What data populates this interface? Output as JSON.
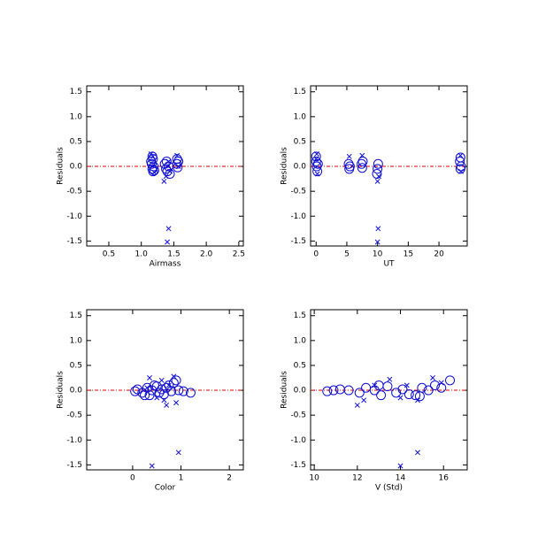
{
  "chart_data": [
    {
      "type": "scatter",
      "x_label": "Airmass",
      "y_label": "Residuals",
      "xlim": [
        0.16,
        2.57
      ],
      "ylim": [
        -1.6,
        1.62
      ],
      "xticks": [
        0.5,
        {
          "value": 1,
          "label": "1.0"
        },
        1.5,
        {
          "value": 2,
          "label": "2.0"
        },
        2.5
      ],
      "yticks": [
        1.5,
        {
          "value": 1,
          "label": "1.0"
        },
        0.5,
        {
          "value": 0,
          "label": "0.0"
        },
        -0.5,
        {
          "value": -1,
          "label": "-1.0"
        },
        -1.5
      ],
      "hline": 0,
      "hline_color": "#dd0000",
      "series": [
        {
          "marker": "o",
          "color": "#1010d0",
          "x": [
            1.15,
            1.16,
            1.17,
            1.18,
            1.19,
            1.2,
            1.17,
            1.18,
            1.36,
            1.38,
            1.4,
            1.42,
            1.44,
            1.39,
            1.55,
            1.56,
            1.57,
            1.55
          ],
          "values": [
            0.1,
            0.05,
            -0.05,
            0.15,
            0.0,
            -0.08,
            0.2,
            -0.1,
            0.05,
            -0.05,
            -0.1,
            0.0,
            -0.15,
            0.1,
            0.05,
            -0.02,
            0.1,
            0.15
          ]
        },
        {
          "marker": "x",
          "color": "#1010d0",
          "x": [
            1.15,
            1.2,
            1.18,
            1.35,
            1.38,
            1.42,
            1.44,
            1.55,
            1.57,
            1.42,
            1.4
          ],
          "values": [
            0.25,
            -0.12,
            0.2,
            -0.3,
            -0.2,
            0.1,
            -0.1,
            0.22,
            0.0,
            -1.25,
            -1.52
          ]
        }
      ]
    },
    {
      "type": "scatter",
      "x_label": "UT",
      "y_label": "Residuals",
      "xlim": [
        -0.9,
        24.6
      ],
      "ylim": [
        -1.6,
        1.62
      ],
      "xticks": [
        0,
        5,
        10,
        15,
        20
      ],
      "yticks": [
        1.5,
        {
          "value": 1,
          "label": "1.0"
        },
        0.5,
        {
          "value": 0,
          "label": "0.0"
        },
        -0.5,
        {
          "value": -1,
          "label": "-1.0"
        },
        -1.5
      ],
      "hline": 0,
      "hline_color": "#dd0000",
      "series": [
        {
          "marker": "o",
          "color": "#1010d0",
          "x": [
            0,
            0.1,
            0.2,
            0,
            0.3,
            5.3,
            5.4,
            5.5,
            7.4,
            7.5,
            7.6,
            10,
            10.1,
            9.9,
            23.4,
            23.5,
            23.6,
            23.5
          ],
          "values": [
            0.1,
            0.0,
            -0.1,
            0.2,
            0.05,
            0.05,
            -0.05,
            0.0,
            0.05,
            -0.03,
            0.1,
            -0.05,
            0.05,
            -0.15,
            0.1,
            -0.05,
            0.0,
            0.18
          ]
        },
        {
          "marker": "x",
          "color": "#1010d0",
          "x": [
            0.1,
            0.2,
            5.4,
            7.5,
            10,
            10.2,
            23.5,
            23.6,
            0,
            10.1,
            10
          ],
          "values": [
            0.25,
            -0.15,
            0.2,
            0.22,
            -0.3,
            -0.2,
            0.22,
            -0.1,
            0.15,
            -1.25,
            -1.52
          ]
        }
      ]
    },
    {
      "type": "scatter",
      "x_label": "Color",
      "y_label": "Residuals",
      "xlim": [
        -0.95,
        2.29
      ],
      "ylim": [
        -1.6,
        1.62
      ],
      "xticks": [
        0,
        1,
        2
      ],
      "yticks": [
        1.5,
        {
          "value": 1,
          "label": "1.0"
        },
        0.5,
        {
          "value": 0,
          "label": "0.0"
        },
        -0.5,
        {
          "value": -1,
          "label": "-1.0"
        },
        -1.5
      ],
      "hline": 0,
      "hline_color": "#dd0000",
      "series": [
        {
          "marker": "o",
          "color": "#1010d0",
          "x": [
            0.05,
            0.1,
            0.2,
            0.3,
            0.35,
            0.4,
            0.5,
            0.55,
            0.6,
            0.65,
            0.7,
            0.75,
            0.8,
            0.85,
            0.9,
            0.95,
            1.05,
            1.2,
            0.45,
            0.25
          ],
          "values": [
            -0.02,
            0.02,
            -0.05,
            0.05,
            -0.1,
            0.0,
            0.08,
            -0.05,
            0.02,
            -0.08,
            0.05,
            0.1,
            -0.02,
            0.15,
            0.2,
            0.0,
            -0.02,
            -0.05,
            0.1,
            -0.1
          ]
        },
        {
          "marker": "x",
          "color": "#1010d0",
          "x": [
            0.35,
            0.5,
            0.6,
            0.7,
            0.75,
            0.85,
            0.9,
            0.3,
            0.65,
            0.4,
            0.95
          ],
          "values": [
            0.25,
            -0.15,
            0.2,
            -0.3,
            0.1,
            0.28,
            -0.25,
            0.05,
            -0.2,
            -1.52,
            -1.25
          ]
        }
      ]
    },
    {
      "type": "scatter",
      "x_label": "V (Std)",
      "y_label": "Residuals",
      "xlim": [
        9.83,
        17.1
      ],
      "ylim": [
        -1.6,
        1.62
      ],
      "xticks": [
        10,
        12,
        14,
        16
      ],
      "yticks": [
        1.5,
        {
          "value": 1,
          "label": "1.0"
        },
        0.5,
        {
          "value": 0,
          "label": "0.0"
        },
        -0.5,
        {
          "value": -1,
          "label": "-1.0"
        },
        -1.5
      ],
      "hline": 0,
      "hline_color": "#dd0000",
      "series": [
        {
          "marker": "o",
          "color": "#1010d0",
          "x": [
            10.6,
            10.9,
            11.2,
            11.6,
            12.1,
            12.4,
            12.8,
            13.1,
            13.4,
            13.8,
            14.1,
            14.4,
            14.7,
            15.0,
            15.3,
            15.6,
            15.9,
            16.3,
            13.0,
            14.9
          ],
          "values": [
            -0.02,
            0.0,
            0.02,
            0.0,
            -0.05,
            0.05,
            0.0,
            -0.1,
            0.08,
            -0.05,
            0.02,
            -0.08,
            -0.1,
            0.05,
            0.0,
            0.1,
            0.05,
            0.2,
            0.1,
            -0.12
          ]
        },
        {
          "marker": "x",
          "color": "#1010d0",
          "x": [
            12.0,
            12.3,
            12.8,
            13.5,
            14.0,
            14.3,
            14.8,
            15.5,
            15.9,
            14.0,
            14.8
          ],
          "values": [
            -0.3,
            -0.2,
            0.1,
            0.22,
            -0.15,
            0.1,
            -0.2,
            0.25,
            0.15,
            -1.52,
            -1.25
          ]
        }
      ]
    }
  ]
}
